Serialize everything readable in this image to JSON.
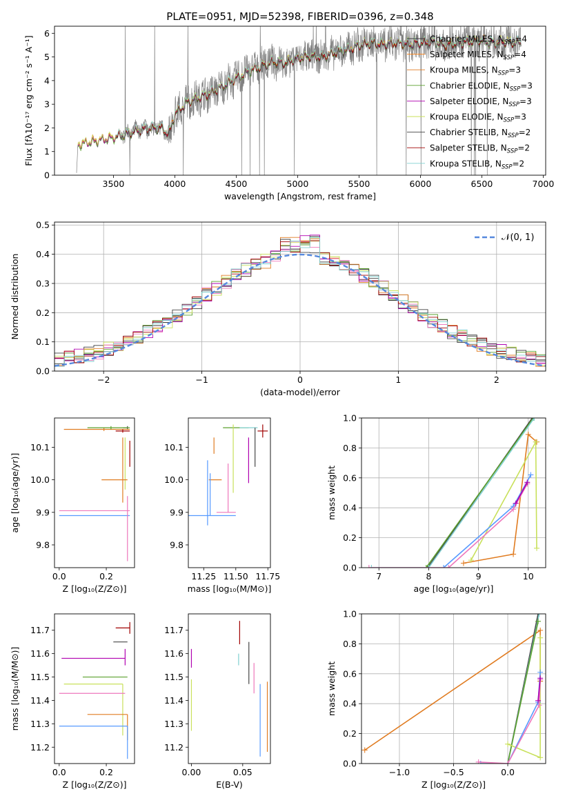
{
  "title": "PLATE=0951, MJD=52398, FIBERID=0396, z=0.348",
  "colors": {
    "chabrier_miles": "#3b3b3b",
    "salpeter_miles": "#ff7f0e",
    "kroupa_miles": "#e07b20",
    "chabrier_elodie": "#5aa02c",
    "salpeter_elodie": "#b000b0",
    "kroupa_elodie": "#c8e05a",
    "chabrier_stelib": "#444444",
    "salpeter_stelib": "#a00000",
    "kroupa_stelib": "#80d0d0",
    "data_grey": "#808080",
    "normal_curve": "#5588dd",
    "pink": "#ee77bb",
    "blue": "#5599ff"
  },
  "chart_data": [
    {
      "id": "spectrum",
      "type": "line",
      "title": "PLATE=0951, MJD=52398, FIBERID=0396, z=0.348",
      "xlabel": "wavelength [Angstrom, rest frame]",
      "ylabel": "Flux [fλ10⁻¹⁷ erg cm⁻² s⁻¹ A⁻¹]",
      "xlim": [
        3020,
        7020
      ],
      "ylim": [
        0,
        6.3
      ],
      "xticks": [
        3500,
        4000,
        4500,
        5000,
        5500,
        6000,
        6500,
        7000
      ],
      "yticks": [
        0,
        1,
        2,
        3,
        4,
        5,
        6
      ],
      "legend_position": "top-right",
      "legend": [
        "Chabrier MILES, N_SSP=4",
        "Salpeter MILES, N_SSP=4",
        "Kroupa MILES, N_SSP=3",
        "Chabrier ELODIE, N_SSP=3",
        "Salpeter ELODIE, N_SSP=3",
        "Kroupa ELODIE, N_SSP=3",
        "Chabrier STELIB, N_SSP=2",
        "Salpeter STELIB, N_SSP=2",
        "Kroupa STELIB, N_SSP=2"
      ],
      "continuum": [
        [
          3200,
          0
        ],
        [
          3210,
          1.3
        ],
        [
          3300,
          1.4
        ],
        [
          3400,
          1.5
        ],
        [
          3500,
          1.6
        ],
        [
          3600,
          1.75
        ],
        [
          3700,
          1.9
        ],
        [
          3800,
          2.0
        ],
        [
          3900,
          2.0
        ],
        [
          3950,
          1.7
        ],
        [
          4000,
          2.6
        ],
        [
          4100,
          3.1
        ],
        [
          4200,
          3.3
        ],
        [
          4300,
          3.5
        ],
        [
          4400,
          3.8
        ],
        [
          4500,
          4.1
        ],
        [
          4600,
          4.4
        ],
        [
          4700,
          4.6
        ],
        [
          4800,
          4.8
        ],
        [
          4900,
          4.75
        ],
        [
          5000,
          4.95
        ],
        [
          5100,
          5.05
        ],
        [
          5200,
          5.0
        ],
        [
          5300,
          5.2
        ],
        [
          5400,
          5.3
        ],
        [
          5500,
          5.5
        ],
        [
          5600,
          5.6
        ],
        [
          5700,
          5.55
        ],
        [
          5800,
          5.6
        ],
        [
          5900,
          5.55
        ],
        [
          6000,
          5.6
        ],
        [
          6100,
          5.65
        ],
        [
          6200,
          5.5
        ],
        [
          6300,
          5.6
        ],
        [
          6400,
          5.65
        ],
        [
          6500,
          5.7
        ],
        [
          6600,
          5.6
        ],
        [
          6700,
          5.65
        ],
        [
          6800,
          5.6
        ]
      ]
    },
    {
      "id": "residuals",
      "type": "histogram",
      "xlabel": "(data-model)/error",
      "ylabel": "Normed distribution",
      "xlim": [
        -2.5,
        2.5
      ],
      "ylim": [
        0,
        0.51
      ],
      "xticks": [
        -2,
        -1,
        0,
        1,
        2
      ],
      "yticks": [
        0.0,
        0.1,
        0.2,
        0.3,
        0.4,
        0.5
      ],
      "legend": [
        "𝒩(0, 1)"
      ],
      "legend_position": "top-right",
      "grid": true
    },
    {
      "id": "age_vs_Z",
      "type": "scatter",
      "xlabel": "Z [log₁₀(Z/Z⊙)]",
      "ylabel": "age  [log₁₀(age/yr)]",
      "xlim": [
        -0.02,
        0.32
      ],
      "ylim": [
        9.73,
        10.19
      ],
      "xticks": [
        0.0,
        0.2
      ],
      "yticks": [
        9.8,
        9.9,
        10.0,
        10.1
      ],
      "points": [
        {
          "x": 0.29,
          "y": 10.16,
          "xerr": [
            0.02,
            0.0
          ],
          "yerr": [
            0.005,
            0.005
          ],
          "color": "#444444"
        },
        {
          "x": 0.19,
          "y": 10.155,
          "xerr": [
            0.17,
            0.11
          ],
          "yerr": [
            0.005,
            0.005
          ],
          "color": "#e07b20"
        },
        {
          "x": 0.22,
          "y": 10.16,
          "xerr": [
            0.1,
            0.08
          ],
          "yerr": [
            0.005,
            0.005
          ],
          "color": "#5aa02c"
        },
        {
          "x": 0.27,
          "y": 10.15,
          "xerr": [
            0.03,
            0.03
          ],
          "yerr": [
            0.005,
            0.005
          ],
          "color": "#a00000"
        },
        {
          "x": 0.27,
          "y": 10.05,
          "xerr": [
            0.0,
            0.0
          ],
          "yerr": [
            0.12,
            0.08
          ],
          "color": "#e07b20"
        },
        {
          "x": 0.28,
          "y": 10.05,
          "xerr": [
            0.0,
            0.0
          ],
          "yerr": [
            0.08,
            0.08
          ],
          "color": "#c8e05a"
        },
        {
          "x": 0.3,
          "y": 10.08,
          "xerr": [
            0.0,
            0.0
          ],
          "yerr": [
            0.04,
            0.04
          ],
          "color": "#a00000"
        },
        {
          "x": 0.29,
          "y": 10.0,
          "xerr": [
            0.11,
            0.0
          ],
          "yerr": [
            0.0,
            0.0
          ],
          "color": "#e07b20"
        },
        {
          "x": 0.15,
          "y": 9.905,
          "xerr": [
            0.15,
            0.15
          ],
          "yerr": [
            0.0,
            0.0
          ],
          "color": "#ee77bb"
        },
        {
          "x": 0.15,
          "y": 9.89,
          "xerr": [
            0.15,
            0.15
          ],
          "yerr": [
            0.0,
            0.0
          ],
          "color": "#5599ff"
        },
        {
          "x": 0.29,
          "y": 9.95,
          "xerr": [
            0.0,
            0.0
          ],
          "yerr": [
            0.2,
            0.0
          ],
          "color": "#ee77bb"
        }
      ]
    },
    {
      "id": "age_vs_mass",
      "type": "scatter",
      "xlabel": "mass [log₁₀(M/M⊙)]",
      "ylabel": "",
      "xlim": [
        11.13,
        11.77
      ],
      "ylim": [
        9.73,
        10.19
      ],
      "xticks": [
        11.25,
        11.5,
        11.75
      ],
      "yticks": [
        9.8,
        9.9,
        10.0,
        10.1
      ],
      "points": [
        {
          "x": 11.5,
          "y": 10.16,
          "xerr": [
            0.1,
            0.1
          ],
          "yerr": [
            0.0,
            0.0
          ],
          "color": "#5aa02c"
        },
        {
          "x": 11.6,
          "y": 10.16,
          "xerr": [
            0.07,
            0.07
          ],
          "yerr": [
            0.0,
            0.0
          ],
          "color": "#80d0d0"
        },
        {
          "x": 11.65,
          "y": 10.09,
          "xerr": [
            0.0,
            0.0
          ],
          "yerr": [
            0.05,
            0.07
          ],
          "color": "#444444"
        },
        {
          "x": 11.71,
          "y": 10.15,
          "xerr": [
            0.04,
            0.04
          ],
          "yerr": [
            0.02,
            0.02
          ],
          "color": "#a00000"
        },
        {
          "x": 11.33,
          "y": 10.08,
          "xerr": [
            0.0,
            0.0
          ],
          "yerr": [
            0.0,
            0.05
          ],
          "color": "#e07b20"
        },
        {
          "x": 11.34,
          "y": 10.0,
          "xerr": [
            0.05,
            0.05
          ],
          "yerr": [
            0.0,
            0.0
          ],
          "color": "#e07b20"
        },
        {
          "x": 11.48,
          "y": 10.07,
          "xerr": [
            0.0,
            0.0
          ],
          "yerr": [
            0.11,
            0.1
          ],
          "color": "#c8e05a"
        },
        {
          "x": 11.6,
          "y": 10.07,
          "xerr": [
            0.0,
            0.0
          ],
          "yerr": [
            0.08,
            0.06
          ],
          "color": "#b000b0"
        },
        {
          "x": 11.28,
          "y": 9.96,
          "xerr": [
            0.0,
            0.0
          ],
          "yerr": [
            0.1,
            0.1
          ],
          "color": "#5599ff"
        },
        {
          "x": 11.44,
          "y": 9.9,
          "xerr": [
            0.09,
            0.06
          ],
          "yerr": [
            0.0,
            0.15
          ],
          "color": "#ee77bb"
        },
        {
          "x": 11.3,
          "y": 9.89,
          "xerr": [
            0.18,
            0.2
          ],
          "yerr": [
            0.0,
            0.13
          ],
          "color": "#5599ff"
        }
      ]
    },
    {
      "id": "mass_weight_vs_age",
      "type": "line",
      "xlabel": "age  [log₁₀(age/yr)]",
      "ylabel": "mass weight",
      "xlim": [
        6.65,
        10.35
      ],
      "ylim": [
        0,
        1.0
      ],
      "xticks": [
        7,
        8,
        9,
        10
      ],
      "yticks": [
        0.0,
        0.2,
        0.4,
        0.6,
        0.8,
        1.0
      ],
      "grid": true,
      "series": [
        {
          "color": "#444444",
          "points": [
            [
              7.98,
              0.0
            ],
            [
              10.08,
              1.0
            ]
          ]
        },
        {
          "color": "#5aa02c",
          "points": [
            [
              7.95,
              0.0
            ],
            [
              10.1,
              1.0
            ]
          ]
        },
        {
          "color": "#80d0d0",
          "points": [
            [
              6.85,
              0.0
            ],
            [
              8.0,
              0.0
            ],
            [
              10.12,
              1.0
            ]
          ]
        },
        {
          "color": "#e07b20",
          "points": [
            [
              8.7,
              0.03
            ],
            [
              9.7,
              0.09
            ],
            [
              10.0,
              0.89
            ],
            [
              10.17,
              0.84
            ]
          ]
        },
        {
          "color": "#c8e05a",
          "points": [
            [
              8.85,
              0.05
            ],
            [
              10.15,
              0.84
            ],
            [
              10.17,
              0.13
            ]
          ]
        },
        {
          "color": "#5599ff",
          "points": [
            [
              8.3,
              0.0
            ],
            [
              9.7,
              0.41
            ],
            [
              10.05,
              0.62
            ]
          ]
        },
        {
          "color": "#ee77bb",
          "points": [
            [
              6.8,
              0.0
            ],
            [
              8.4,
              0.0
            ],
            [
              9.7,
              0.39
            ],
            [
              9.98,
              0.56
            ]
          ]
        },
        {
          "color": "#b000b0",
          "points": [
            [
              9.75,
              0.43
            ],
            [
              9.98,
              0.57
            ]
          ]
        }
      ]
    },
    {
      "id": "mass_vs_Z",
      "type": "scatter",
      "xlabel": "Z [log₁₀(Z/Z⊙)]",
      "ylabel": "mass [log₁₀(M/M⊙)]",
      "xlim": [
        -0.02,
        0.32
      ],
      "ylim": [
        11.13,
        11.77
      ],
      "xticks": [
        0.0,
        0.2
      ],
      "yticks": [
        11.2,
        11.3,
        11.4,
        11.5,
        11.6,
        11.7
      ],
      "points": [
        {
          "x": 0.3,
          "y": 11.71,
          "xerr": [
            0.06,
            0.0
          ],
          "yerr": [
            0.025,
            0.025
          ],
          "color": "#a00000"
        },
        {
          "x": 0.29,
          "y": 11.65,
          "xerr": [
            0.06,
            0.0
          ],
          "yerr": [
            0.0,
            0.0
          ],
          "color": "#444444"
        },
        {
          "x": 0.28,
          "y": 11.58,
          "xerr": [
            0.27,
            0.0
          ],
          "yerr": [
            0.03,
            0.04
          ],
          "color": "#b000b0"
        },
        {
          "x": 0.29,
          "y": 11.5,
          "xerr": [
            0.19,
            0.0
          ],
          "yerr": [
            0.0,
            0.0
          ],
          "color": "#5aa02c"
        },
        {
          "x": 0.27,
          "y": 11.47,
          "xerr": [
            0.25,
            0.0
          ],
          "yerr": [
            0.22,
            0.0
          ],
          "color": "#c8e05a"
        },
        {
          "x": 0.28,
          "y": 11.43,
          "xerr": [
            0.28,
            0.0
          ],
          "yerr": [
            0.0,
            0.0
          ],
          "color": "#ee77bb"
        },
        {
          "x": 0.29,
          "y": 11.34,
          "xerr": [
            0.17,
            0.0
          ],
          "yerr": [
            0.11,
            0.0
          ],
          "color": "#e07b20"
        },
        {
          "x": 0.29,
          "y": 11.29,
          "xerr": [
            0.29,
            0.0
          ],
          "yerr": [
            0.14,
            0.0
          ],
          "color": "#5599ff"
        }
      ]
    },
    {
      "id": "mass_vs_ebv",
      "type": "scatter",
      "xlabel": "E(B-V)",
      "ylabel": "",
      "xlim": [
        -0.003,
        0.077
      ],
      "ylim": [
        11.13,
        11.77
      ],
      "xticks": [
        0.0,
        0.05
      ],
      "yticks": [
        11.2,
        11.3,
        11.4,
        11.5,
        11.6,
        11.7
      ],
      "points": [
        {
          "x": 0.047,
          "y": 11.69,
          "xerr": [
            0,
            0
          ],
          "yerr": [
            0.05,
            0.05
          ],
          "color": "#a00000"
        },
        {
          "x": 0.046,
          "y": 11.6,
          "xerr": [
            0,
            0
          ],
          "yerr": [
            0.05,
            0.0
          ],
          "color": "#80d0d0"
        },
        {
          "x": 0.056,
          "y": 11.55,
          "xerr": [
            0,
            0
          ],
          "yerr": [
            0.08,
            0.1
          ],
          "color": "#444444"
        },
        {
          "x": 0.061,
          "y": 11.5,
          "xerr": [
            0,
            0
          ],
          "yerr": [
            0.07,
            0.06
          ],
          "color": "#ee77bb"
        },
        {
          "x": 0.067,
          "y": 11.32,
          "xerr": [
            0,
            0
          ],
          "yerr": [
            0.16,
            0.15
          ],
          "color": "#5599ff"
        },
        {
          "x": 0.074,
          "y": 11.33,
          "xerr": [
            0,
            0
          ],
          "yerr": [
            0.15,
            0.15
          ],
          "color": "#e07b20"
        },
        {
          "x": 0.0,
          "y": 11.58,
          "xerr": [
            0,
            0
          ],
          "yerr": [
            0.04,
            0.04
          ],
          "color": "#b000b0"
        },
        {
          "x": 0.0,
          "y": 11.39,
          "xerr": [
            0,
            0
          ],
          "yerr": [
            0.12,
            0.1
          ],
          "color": "#c8e05a"
        }
      ]
    },
    {
      "id": "mass_weight_vs_Z",
      "type": "line",
      "xlabel": "Z [log₁₀(Z/Z⊙)]",
      "ylabel": "mass weight",
      "xlim": [
        -1.35,
        0.35
      ],
      "ylim": [
        0,
        1.0
      ],
      "xticks": [
        -1.0,
        -0.5,
        0.0
      ],
      "yticks": [
        0.0,
        0.2,
        0.4,
        0.6,
        0.8,
        1.0
      ],
      "grid": true,
      "series": [
        {
          "color": "#e07b20",
          "points": [
            [
              -1.32,
              0.09
            ],
            [
              0.3,
              0.89
            ],
            [
              0.3,
              0.55
            ]
          ]
        },
        {
          "color": "#444444",
          "points": [
            [
              0.0,
              0.0
            ],
            [
              0.28,
              1.0
            ]
          ]
        },
        {
          "color": "#80d0d0",
          "points": [
            [
              0.0,
              0.0
            ],
            [
              0.29,
              1.0
            ]
          ]
        },
        {
          "color": "#5aa02c",
          "points": [
            [
              0.0,
              0.0
            ],
            [
              0.28,
              0.95
            ]
          ]
        },
        {
          "color": "#c8e05a",
          "points": [
            [
              0.0,
              0.13
            ],
            [
              0.3,
              0.04
            ],
            [
              0.3,
              0.84
            ]
          ]
        },
        {
          "color": "#5599ff",
          "points": [
            [
              -0.25,
              0.0
            ],
            [
              0.0,
              0.0
            ],
            [
              0.28,
              0.41
            ],
            [
              0.3,
              0.61
            ]
          ]
        },
        {
          "color": "#ee77bb",
          "points": [
            [
              -0.27,
              0.01
            ],
            [
              0.0,
              0.0
            ],
            [
              0.29,
              0.39
            ],
            [
              0.3,
              0.56
            ]
          ]
        },
        {
          "color": "#b000b0",
          "points": [
            [
              0.28,
              0.42
            ],
            [
              0.3,
              0.57
            ]
          ]
        }
      ]
    }
  ]
}
